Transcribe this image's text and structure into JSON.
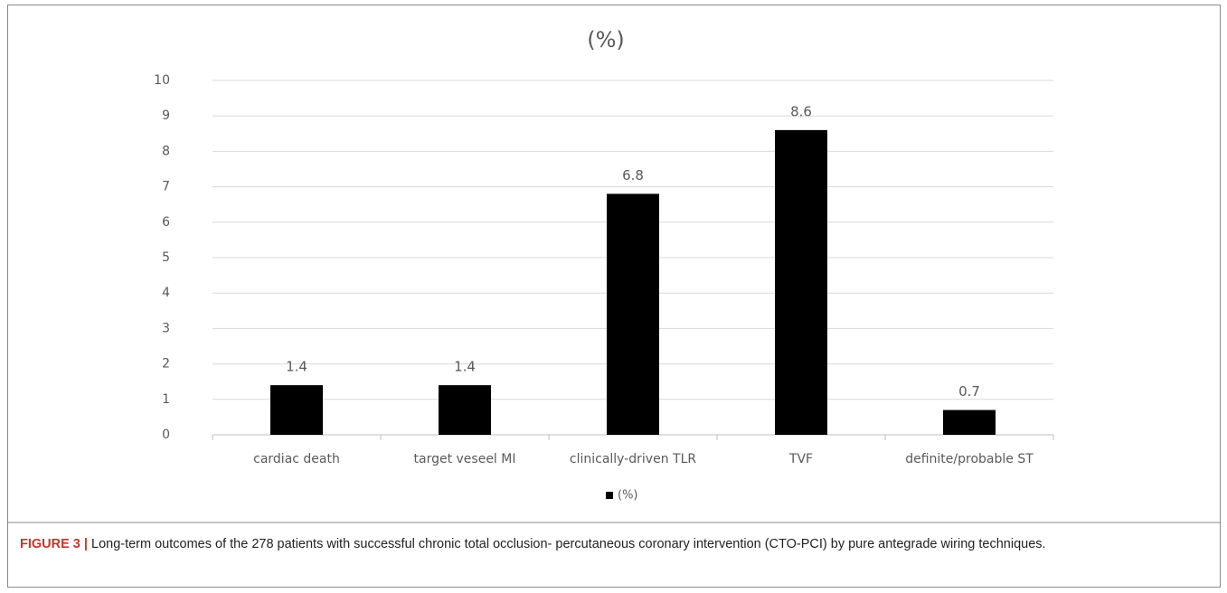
{
  "chart_data": {
    "type": "bar",
    "title": "(%)",
    "categories": [
      "cardiac death",
      "target veseel MI",
      "clinically-driven TLR",
      "TVF",
      "definite/probable ST"
    ],
    "series": [
      {
        "name": "(%)",
        "color": "#000000",
        "values": [
          1.4,
          1.4,
          6.8,
          8.6,
          0.7
        ]
      }
    ],
    "ylim": [
      0,
      10
    ],
    "yticks": [
      0,
      1,
      2,
      3,
      4,
      5,
      6,
      7,
      8,
      9,
      10
    ],
    "grid": true,
    "legend": "bottom",
    "data_labels": true
  },
  "caption": {
    "label": "FIGURE 3 |",
    "text": "Long-term outcomes of the 278 patients with successful chronic total occlusion- percutaneous coronary intervention (CTO-PCI) by pure antegrade wiring techniques."
  }
}
